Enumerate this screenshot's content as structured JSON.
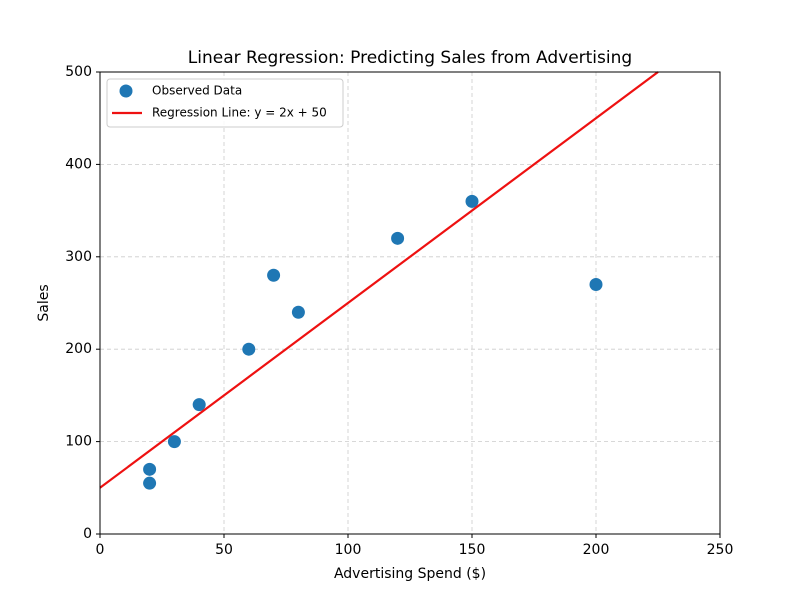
{
  "chart_data": {
    "type": "scatter",
    "title": "Linear Regression: Predicting Sales from Advertising",
    "x_label": "Advertising Spend ($)",
    "y_label": "Sales",
    "xlim": [
      0,
      250
    ],
    "xticks": [
      0,
      50,
      100,
      150,
      200,
      250
    ],
    "ylim": [
      0,
      500
    ],
    "yticks": [
      0,
      100,
      200,
      300,
      400,
      500
    ],
    "grid": true,
    "legend": "upper left",
    "series": [
      {
        "name": "Observed Data",
        "type": "scatter",
        "color": "#1f77b4",
        "x": [
          20,
          20,
          30,
          40,
          60,
          70,
          80,
          120,
          150,
          200
        ],
        "values": [
          55,
          70,
          100,
          140,
          200,
          280,
          240,
          320,
          360,
          270
        ]
      },
      {
        "name": "Regression Line: y = 2x + 50",
        "type": "line",
        "color": "#ee1111",
        "x": [
          0,
          225
        ],
        "values": [
          50,
          500
        ]
      }
    ]
  }
}
